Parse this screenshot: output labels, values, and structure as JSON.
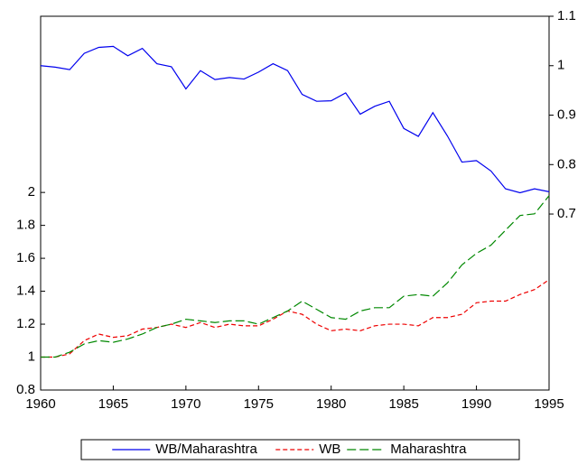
{
  "chart_data": {
    "type": "line",
    "x": [
      1960,
      1961,
      1962,
      1963,
      1964,
      1965,
      1966,
      1967,
      1968,
      1969,
      1970,
      1971,
      1972,
      1973,
      1974,
      1975,
      1976,
      1977,
      1978,
      1979,
      1980,
      1981,
      1982,
      1983,
      1984,
      1985,
      1986,
      1987,
      1988,
      1989,
      1990,
      1991,
      1992,
      1993,
      1994,
      1995
    ],
    "xlim": [
      1960,
      1995
    ],
    "xticks": [
      1960,
      1965,
      1970,
      1975,
      1980,
      1985,
      1990,
      1995
    ],
    "ylim": [
      0.8,
      3.07
    ],
    "yticks": [
      0.8,
      1.0,
      1.2,
      1.4,
      1.6,
      1.8,
      2.0
    ],
    "y2lim": [
      0.344,
      1.1
    ],
    "y2ticks": [
      0.7,
      0.8,
      0.9,
      1.0,
      1.1
    ],
    "legend": "bottom",
    "series": [
      {
        "name": "WB/Maharashtra",
        "color": "#0000ee",
        "line_style": "solid",
        "axis": "y2",
        "values": [
          1.0,
          0.997,
          0.992,
          1.025,
          1.037,
          1.039,
          1.02,
          1.035,
          1.004,
          0.998,
          0.953,
          0.99,
          0.972,
          0.976,
          0.973,
          0.987,
          1.004,
          0.99,
          0.942,
          0.928,
          0.929,
          0.945,
          0.902,
          0.918,
          0.928,
          0.873,
          0.857,
          0.905,
          0.858,
          0.805,
          0.808,
          0.787,
          0.751,
          0.743,
          0.751,
          0.745
        ]
      },
      {
        "name": "WB",
        "color": "#ee0000",
        "line_style": "dashed",
        "values": [
          1.0,
          1.0,
          1.02,
          1.1,
          1.14,
          1.12,
          1.13,
          1.17,
          1.18,
          1.2,
          1.18,
          1.21,
          1.18,
          1.2,
          1.19,
          1.19,
          1.23,
          1.28,
          1.26,
          1.2,
          1.16,
          1.17,
          1.16,
          1.19,
          1.2,
          1.2,
          1.19,
          1.24,
          1.24,
          1.26,
          1.33,
          1.34,
          1.34,
          1.38,
          1.41,
          1.47
        ]
      },
      {
        "name": "Maharashtra",
        "color": "#008800",
        "line_style": "long-dashed",
        "values": [
          1.0,
          1.0,
          1.03,
          1.08,
          1.1,
          1.09,
          1.11,
          1.14,
          1.18,
          1.2,
          1.23,
          1.22,
          1.21,
          1.22,
          1.22,
          1.2,
          1.24,
          1.28,
          1.34,
          1.29,
          1.24,
          1.23,
          1.28,
          1.3,
          1.3,
          1.37,
          1.38,
          1.37,
          1.45,
          1.56,
          1.63,
          1.68,
          1.77,
          1.86,
          1.87,
          1.98
        ]
      }
    ]
  }
}
